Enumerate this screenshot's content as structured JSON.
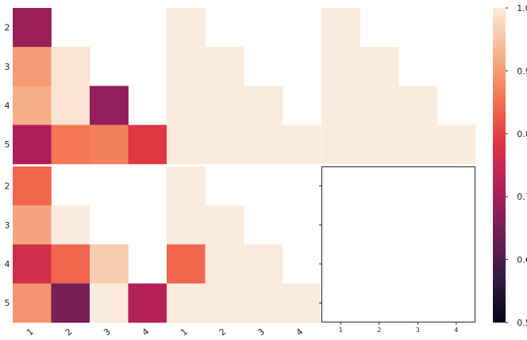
{
  "chart_data": {
    "type": "heatmap",
    "layout": {
      "rows": 2,
      "cols": 3
    },
    "row_labels": [
      "2",
      "3",
      "4",
      "5"
    ],
    "col_labels": [
      "1",
      "2",
      "3",
      "4"
    ],
    "empty_panel_ticks": [
      "1",
      "2",
      "3",
      "4"
    ],
    "colorbar": {
      "min": 0.5,
      "max": 1.0,
      "ticks": [
        "0.5",
        "0.6",
        "0.7",
        "0.8",
        "0.9",
        "1.0"
      ],
      "colormap": "rocket",
      "stops": [
        "#03051a",
        "#331c46",
        "#711f57",
        "#b11f5a",
        "#e13342",
        "#f37651",
        "#f6b48f",
        "#faebdd"
      ]
    },
    "panels": [
      {
        "id": "r1c1",
        "values": [
          [
            0.69,
            null,
            null,
            null
          ],
          [
            0.9,
            0.99,
            null,
            null
          ],
          [
            0.92,
            0.99,
            0.68,
            null
          ],
          [
            0.71,
            0.86,
            0.87,
            0.79
          ]
        ]
      },
      {
        "id": "r1c2",
        "values": [
          [
            1.0,
            null,
            null,
            null
          ],
          [
            1.0,
            1.0,
            null,
            null
          ],
          [
            1.0,
            1.0,
            1.0,
            null
          ],
          [
            1.0,
            1.0,
            1.0,
            1.0
          ]
        ]
      },
      {
        "id": "r1c3",
        "values": [
          [
            1.0,
            null,
            null,
            null
          ],
          [
            1.0,
            1.0,
            null,
            null
          ],
          [
            1.0,
            1.0,
            1.0,
            null
          ],
          [
            1.0,
            1.0,
            1.0,
            1.0
          ]
        ]
      },
      {
        "id": "r2c1",
        "values": [
          [
            0.84,
            null,
            null,
            null
          ],
          [
            0.91,
            1.0,
            null,
            null
          ],
          [
            0.76,
            0.84,
            0.96,
            null
          ],
          [
            0.89,
            0.65,
            1.0,
            0.72
          ]
        ]
      },
      {
        "id": "r2c2",
        "values": [
          [
            1.0,
            null,
            null,
            null
          ],
          [
            1.0,
            1.0,
            null,
            null
          ],
          [
            0.84,
            1.0,
            1.0,
            null
          ],
          [
            1.0,
            1.0,
            1.0,
            1.0
          ]
        ]
      },
      {
        "id": "r2c3",
        "values": null
      }
    ]
  }
}
